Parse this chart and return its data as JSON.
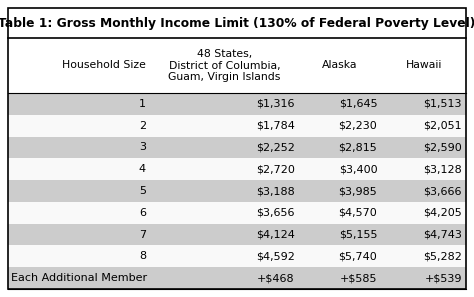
{
  "title": "Table 1: Gross Monthly Income Limit (130% of Federal Poverty Level)",
  "col_headers": [
    "Household Size",
    "48 States,\nDistrict of Columbia,\nGuam, Virgin Islands",
    "Alaska",
    "Hawaii"
  ],
  "rows": [
    [
      "1",
      "$1,316",
      "$1,645",
      "$1,513"
    ],
    [
      "2",
      "$1,784",
      "$2,230",
      "$2,051"
    ],
    [
      "3",
      "$2,252",
      "$2,815",
      "$2,590"
    ],
    [
      "4",
      "$2,720",
      "$3,400",
      "$3,128"
    ],
    [
      "5",
      "$3,188",
      "$3,985",
      "$3,666"
    ],
    [
      "6",
      "$3,656",
      "$4,570",
      "$4,205"
    ],
    [
      "7",
      "$4,124",
      "$5,155",
      "$4,743"
    ],
    [
      "8",
      "$4,592",
      "$5,740",
      "$5,282"
    ],
    [
      "Each Additional Member",
      "+$468",
      "+$585",
      "+$539"
    ]
  ],
  "shaded_rows": [
    0,
    2,
    4,
    6,
    8
  ],
  "shade_color": "#cccccc",
  "white_color": "#f9f9f9",
  "bg_color": "#ffffff",
  "title_fontsize": 8.8,
  "header_fontsize": 7.8,
  "cell_fontsize": 8.0
}
